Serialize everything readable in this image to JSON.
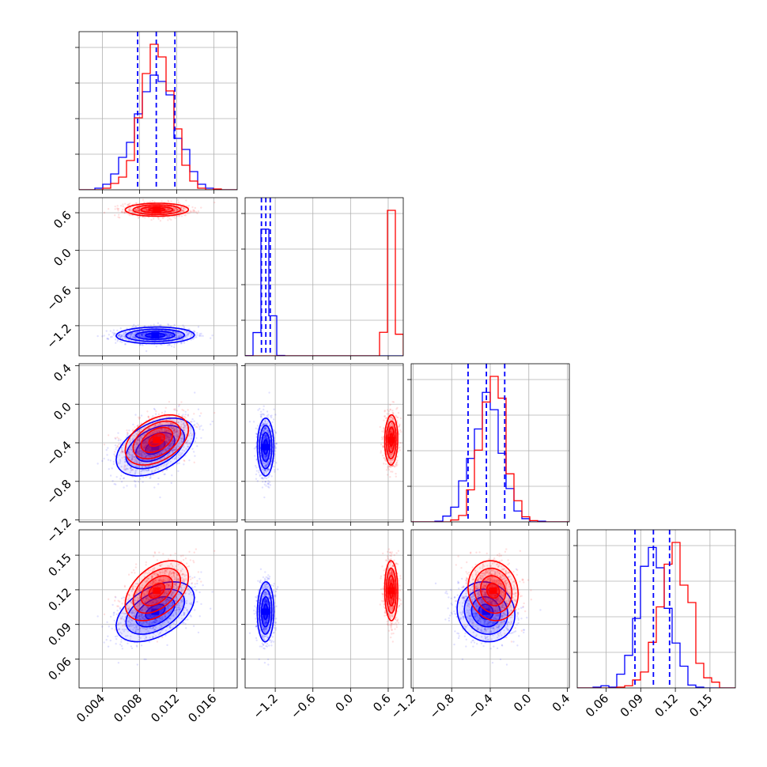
{
  "chart_data": {
    "type": "corner-plot",
    "grid": true,
    "colors": {
      "a": "#0000ff",
      "b": "#ff0000"
    },
    "series": [
      {
        "color": "#0000ff",
        "params": [
          {
            "mean": 0.0098,
            "sd": 0.0021
          },
          {
            "mean": -1.35,
            "sd": 0.066
          },
          {
            "mean": -0.44,
            "sd": 0.15
          },
          {
            "mean": 0.101,
            "sd": 0.013
          }
        ]
      },
      {
        "color": "#ff0000",
        "params": [
          {
            "mean": 0.0099,
            "sd": 0.0017
          },
          {
            "mean": 0.65,
            "sd": 0.052
          },
          {
            "mean": -0.37,
            "sd": 0.13
          },
          {
            "mean": 0.119,
            "sd": 0.013
          }
        ]
      }
    ],
    "quantile_lines": [
      [
        0.0078,
        0.0098,
        0.0118
      ],
      [
        -1.42,
        -1.35,
        -1.28
      ],
      [
        -0.63,
        -0.44,
        -0.25
      ],
      [
        0.085,
        0.101,
        0.115
      ]
    ],
    "ranges": [
      [
        0.0015,
        0.0185
      ],
      [
        -1.68,
        0.84
      ],
      [
        -1.22,
        0.42
      ],
      [
        0.035,
        0.172
      ]
    ],
    "x_ticks": [
      [
        "0.004",
        "0.008",
        "0.012",
        "0.016"
      ],
      [
        "−1.2",
        "−0.6",
        "0.0",
        "0.6"
      ],
      [
        "−1.2",
        "−0.8",
        "−0.4",
        "0.0",
        "0.4"
      ],
      [
        "0.06",
        "0.09",
        "0.12",
        "0.15"
      ]
    ],
    "y_ticks": [
      [],
      [
        "0.6",
        "0.0",
        "−0.6",
        "−1.2"
      ],
      [
        "0.4",
        "0.0",
        "−0.4",
        "−0.8",
        "−1.2"
      ],
      [
        "0.15",
        "0.12",
        "0.09",
        "0.06"
      ]
    ]
  }
}
